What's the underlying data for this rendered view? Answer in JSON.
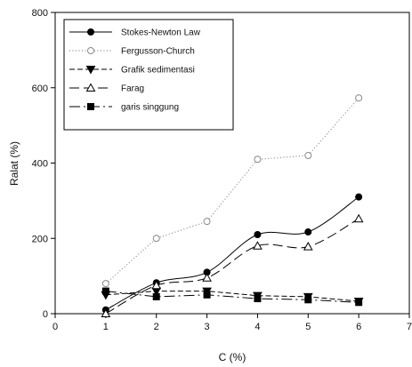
{
  "chart_data": {
    "type": "line",
    "x": [
      1,
      2,
      3,
      4,
      5,
      6
    ],
    "xlabel": "C (%)",
    "ylabel": "Ralat (%)",
    "xlim": [
      0,
      7
    ],
    "ylim": [
      0,
      800
    ],
    "xticks": [
      0,
      1,
      2,
      3,
      4,
      5,
      6,
      7
    ],
    "yticks": [
      0,
      200,
      400,
      600,
      800
    ],
    "grid": false,
    "legend_position": "top-left",
    "series": [
      {
        "name": "Stokes-Newton Law",
        "values": [
          10,
          82,
          110,
          210,
          217,
          310
        ],
        "marker": "filled-circle",
        "line": "solid",
        "smooth": true,
        "color": "#000000"
      },
      {
        "name": "Fergusson-Church",
        "values": [
          80,
          200,
          245,
          410,
          420,
          573
        ],
        "marker": "open-circle",
        "line": "dotted",
        "smooth": false,
        "color": "#888888"
      },
      {
        "name": "Grafik sedimentasi",
        "values": [
          50,
          60,
          60,
          48,
          45,
          33
        ],
        "marker": "filled-triangle-down",
        "line": "short-dash",
        "smooth": false,
        "color": "#000000"
      },
      {
        "name": "Farag",
        "values": [
          0,
          75,
          95,
          180,
          178,
          252
        ],
        "marker": "open-triangle-up",
        "line": "long-dash",
        "smooth": true,
        "color": "#000000"
      },
      {
        "name": "garis singgung",
        "values": [
          60,
          45,
          50,
          40,
          37,
          30
        ],
        "marker": "filled-square",
        "line": "dash-dot",
        "smooth": false,
        "color": "#000000"
      }
    ]
  }
}
